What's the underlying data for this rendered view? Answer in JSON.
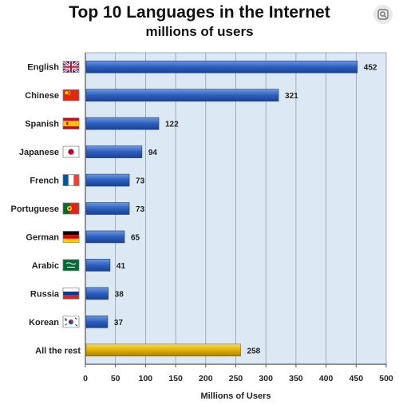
{
  "title": "Top 10 Languages in the Internet",
  "subtitle": "millions of users",
  "chart_data": {
    "type": "bar",
    "orientation": "horizontal",
    "title": "Top 10 Languages in the Internet",
    "subtitle": "millions of users",
    "xlabel": "Millions of Users",
    "ylabel": "",
    "xlim": [
      0,
      500
    ],
    "xticks": [
      "0",
      "50",
      "100",
      "150",
      "200",
      "250",
      "300",
      "350",
      "400",
      "450",
      "500"
    ],
    "grid": true,
    "categories": [
      "English",
      "Chinese",
      "Spanish",
      "Japanese",
      "French",
      "Portuguese",
      "German",
      "Arabic",
      "Russia",
      "Korean",
      "All the rest"
    ],
    "flags": [
      "uk-flag-icon",
      "china-flag-icon",
      "spain-flag-icon",
      "japan-flag-icon",
      "france-flag-icon",
      "portugal-flag-icon",
      "germany-flag-icon",
      "saudi-flag-icon",
      "russia-flag-icon",
      "korea-flag-icon",
      ""
    ],
    "values": [
      452,
      321,
      122,
      94,
      73,
      73,
      65,
      41,
      38,
      37,
      258
    ],
    "data_labels": [
      "452",
      "321",
      "122",
      "94",
      "73",
      "73",
      "65",
      "41",
      "38",
      "37",
      "258"
    ],
    "bar_colors": [
      "#2d5fbf",
      "#2d5fbf",
      "#2d5fbf",
      "#2d5fbf",
      "#2d5fbf",
      "#2d5fbf",
      "#2d5fbf",
      "#2d5fbf",
      "#2d5fbf",
      "#2d5fbf",
      "#e2b100"
    ],
    "plot_background": "#dce8f3"
  }
}
